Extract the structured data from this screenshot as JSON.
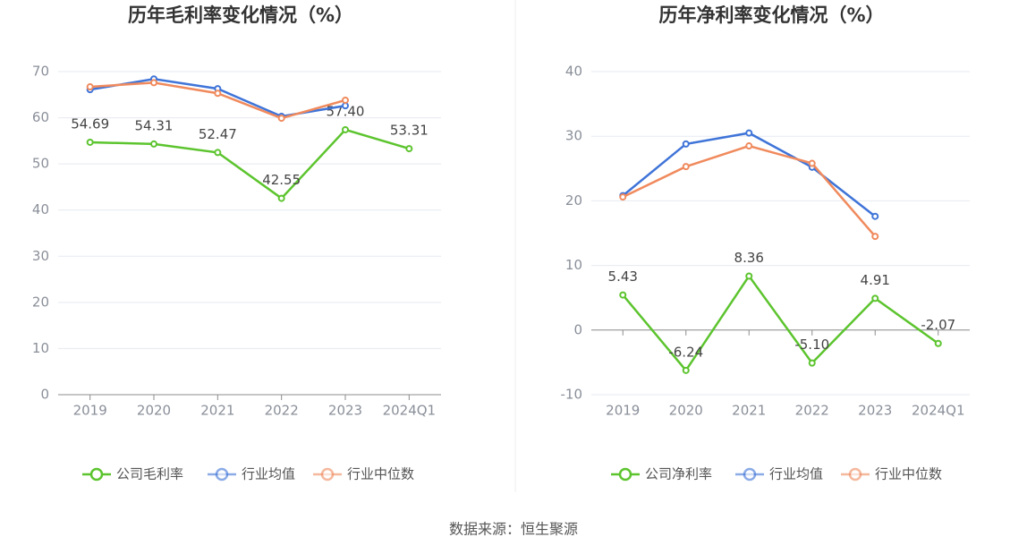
{
  "chart_data": [
    {
      "type": "line",
      "title": "历年毛利率变化情况（%）",
      "categories": [
        "2019",
        "2020",
        "2021",
        "2022",
        "2023",
        "2024Q1"
      ],
      "series": [
        {
          "name": "公司毛利率",
          "color": "#5cc42e",
          "values": [
            54.69,
            54.31,
            52.47,
            42.55,
            57.4,
            53.31
          ],
          "value_labels": [
            "54.69",
            "54.31",
            "52.47",
            "42.55",
            "57.40",
            "53.31"
          ]
        },
        {
          "name": "行业均值",
          "color": "#3f74d8",
          "values": [
            66.1,
            68.4,
            66.3,
            60.3,
            62.6,
            null
          ]
        },
        {
          "name": "行业中位数",
          "color": "#f08a5d",
          "values": [
            66.7,
            67.6,
            65.3,
            59.9,
            63.8,
            null
          ]
        }
      ],
      "ylim": [
        0,
        70
      ],
      "yticks": [
        0,
        10,
        20,
        30,
        40,
        50,
        60,
        70
      ],
      "grid": true,
      "legend": "bottom"
    },
    {
      "type": "line",
      "title": "历年净利率变化情况（%）",
      "categories": [
        "2019",
        "2020",
        "2021",
        "2022",
        "2023",
        "2024Q1"
      ],
      "series": [
        {
          "name": "公司净利率",
          "color": "#5cc42e",
          "values": [
            5.43,
            -6.24,
            8.36,
            -5.1,
            4.91,
            -2.07
          ],
          "value_labels": [
            "5.43",
            "-6.24",
            "8.36",
            "-5.10",
            "4.91",
            "-2.07"
          ]
        },
        {
          "name": "行业均值",
          "color": "#3f74d8",
          "values": [
            20.8,
            28.8,
            30.5,
            25.2,
            17.6,
            null
          ]
        },
        {
          "name": "行业中位数",
          "color": "#f08a5d",
          "values": [
            20.6,
            25.3,
            28.5,
            25.8,
            14.5,
            null
          ]
        }
      ],
      "ylim": [
        -10,
        40
      ],
      "yticks": [
        -10,
        0,
        10,
        20,
        30,
        40
      ],
      "grid": true,
      "legend": "bottom"
    }
  ],
  "source": "数据来源：恒生聚源"
}
